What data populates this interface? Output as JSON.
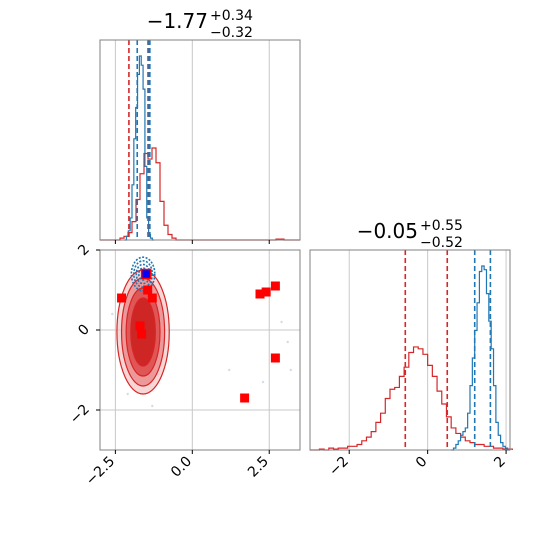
{
  "chart_data": [
    {
      "type": "histogram",
      "panel": "top-left marginal",
      "title": {
        "value": "−1.77",
        "upper": "+0.34",
        "lower": "−0.32"
      },
      "xlim": [
        -3.0,
        3.5
      ],
      "grid": true,
      "quantile_lines": {
        "red": [
          -2.06,
          -1.42
        ],
        "blue": [
          -1.79,
          -1.44,
          -1.38
        ]
      },
      "series": [
        {
          "color": "#d62728",
          "bins_start": -3.0,
          "bin_width": 0.13,
          "values": [
            0,
            0,
            0,
            0,
            0,
            0.01,
            0.02,
            0.04,
            0.1,
            0.22,
            0.36,
            0.47,
            0.44,
            0.5,
            0.42,
            0.21,
            0.08,
            0.03,
            0.01,
            0,
            0,
            0,
            0,
            0,
            0,
            0,
            0,
            0,
            0,
            0,
            0,
            0,
            0,
            0,
            0,
            0,
            0,
            0,
            0,
            0,
            0,
            0,
            0,
            0,
            0.005,
            0.005,
            0,
            0,
            0,
            0
          ]
        },
        {
          "color": "#1f77b4",
          "bins_start": -2.2,
          "bin_width": 0.06,
          "values": [
            0,
            0.02,
            0.05,
            0.12,
            0.3,
            0.55,
            0.72,
            0.9,
            1.0,
            0.95,
            0.82,
            0.4,
            0.12,
            0.03,
            0.01,
            0
          ]
        }
      ]
    },
    {
      "type": "scatter",
      "panel": "bottom-left 2d",
      "xlim": [
        -3.0,
        3.5
      ],
      "ylim": [
        -3.0,
        2.0
      ],
      "xticks": [
        "−2.5",
        "0.0",
        "2.5"
      ],
      "yticks": [
        "−2",
        "0",
        "2"
      ],
      "grid": true,
      "red_contour_center": [
        -1.6,
        -0.05
      ],
      "blue_contour_center": [
        -1.6,
        1.4
      ],
      "markers_red_squares": [
        [
          -2.3,
          0.8
        ],
        [
          -1.7,
          0.1
        ],
        [
          -1.65,
          -0.1
        ],
        [
          -1.45,
          1.0
        ],
        [
          -1.3,
          0.8
        ],
        [
          2.2,
          0.9
        ],
        [
          2.4,
          0.95
        ],
        [
          2.7,
          1.1
        ],
        [
          2.7,
          -0.7
        ],
        [
          1.7,
          -1.7
        ]
      ],
      "marker_blue_square": [
        -1.5,
        1.4
      ],
      "faint_points": [
        [
          2.9,
          0.2
        ],
        [
          3.1,
          -0.3
        ],
        [
          3.2,
          -1.0
        ],
        [
          2.3,
          -1.3
        ],
        [
          1.2,
          -1.0
        ],
        [
          -2.1,
          -1.6
        ],
        [
          -1.3,
          -1.9
        ],
        [
          -2.6,
          0.4
        ],
        [
          -1.0,
          0.5
        ],
        [
          -1.1,
          -1.1
        ]
      ]
    },
    {
      "type": "histogram",
      "panel": "bottom-right marginal",
      "title": {
        "value": "−0.05",
        "upper": "+0.55",
        "lower": "−0.52"
      },
      "xlim": [
        -3.0,
        2.1
      ],
      "xticks": [
        "−2",
        "0",
        "2"
      ],
      "grid": true,
      "quantile_lines": {
        "red": [
          -0.57,
          0.5
        ],
        "blue": [
          1.2,
          1.6
        ]
      },
      "series": [
        {
          "color": "#d62728",
          "bins_start": -3.0,
          "bin_width": 0.12,
          "values": [
            0,
            0,
            0.005,
            0,
            0.01,
            0.005,
            0.01,
            0.01,
            0.02,
            0.02,
            0.03,
            0.05,
            0.07,
            0.1,
            0.15,
            0.2,
            0.28,
            0.33,
            0.34,
            0.4,
            0.45,
            0.53,
            0.56,
            0.55,
            0.52,
            0.46,
            0.4,
            0.32,
            0.25,
            0.18,
            0.12,
            0.09,
            0.07,
            0.05,
            0.04,
            0.03,
            0.03,
            0.02,
            0.02,
            0.01,
            0.01,
            0.005,
            0.005
          ]
        },
        {
          "color": "#1f77b4",
          "bins_start": 0.6,
          "bin_width": 0.06,
          "values": [
            0,
            0.01,
            0.03,
            0.05,
            0.08,
            0.1,
            0.12,
            0.2,
            0.35,
            0.5,
            0.65,
            0.8,
            0.97,
            1.0,
            0.98,
            0.85,
            0.7,
            0.55,
            0.35,
            0.15,
            0.08,
            0.04,
            0.02,
            0.01,
            0
          ]
        }
      ]
    }
  ]
}
